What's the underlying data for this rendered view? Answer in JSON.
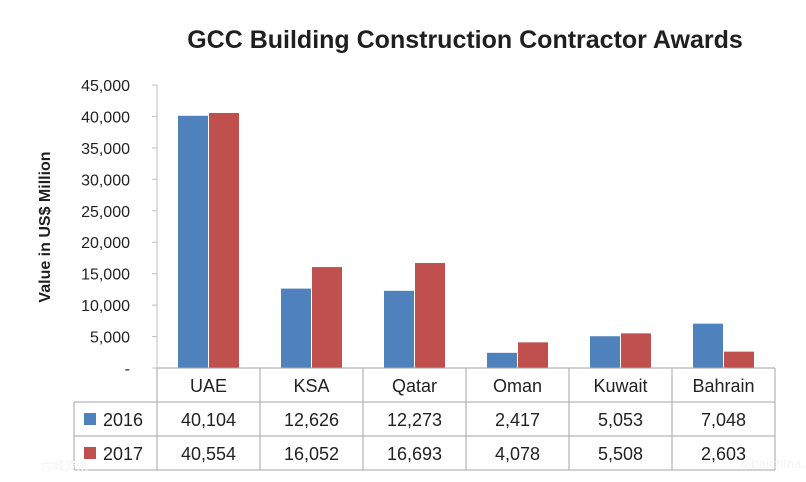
{
  "chart_data": {
    "type": "bar",
    "title": "GCC Building Construction Contractor Awards",
    "ylabel": "Value in US$ Million",
    "ylim": [
      0,
      45000
    ],
    "yticks": [
      "-",
      "5,000",
      "10,000",
      "15,000",
      "20,000",
      "25,000",
      "30,000",
      "35,000",
      "40,000",
      "45,000"
    ],
    "categories": [
      "UAE",
      "KSA",
      "Qatar",
      "Oman",
      "Kuwait",
      "Bahrain"
    ],
    "series": [
      {
        "name": "2016",
        "color": "#4f81bd",
        "values": [
          40104,
          12626,
          12273,
          2417,
          5053,
          7048
        ],
        "labels": [
          "40,104",
          "12,626",
          "12,273",
          "2,417",
          "5,053",
          "7,048"
        ]
      },
      {
        "name": "2017",
        "color": "#c0504d",
        "values": [
          40554,
          16052,
          16693,
          4078,
          5508,
          2603
        ],
        "labels": [
          "40,554",
          "16,052",
          "16,693",
          "4,078",
          "5,508",
          "2,603"
        ]
      }
    ],
    "data_table": true,
    "grid": false
  },
  "watermarks": [
    "六城资讯",
    "dibaichina.com"
  ]
}
